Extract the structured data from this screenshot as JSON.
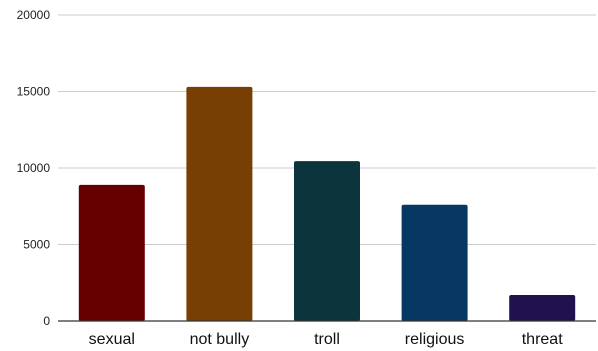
{
  "chart_data": {
    "type": "bar",
    "title": "",
    "xlabel": "",
    "ylabel": "",
    "categories": [
      "sexual",
      "not bully",
      "troll",
      "religious",
      "threat"
    ],
    "values": [
      8900,
      15300,
      10450,
      7600,
      1700
    ],
    "colors": [
      "#660000",
      "#783f04",
      "#0c343d",
      "#073763",
      "#20124d"
    ],
    "ylim": [
      0,
      20000
    ],
    "yticks": [
      0,
      5000,
      10000,
      15000,
      20000
    ],
    "ytick_labels": [
      "0",
      "5000",
      "10000",
      "15000",
      "20000"
    ],
    "grid": true,
    "legend": "none"
  }
}
